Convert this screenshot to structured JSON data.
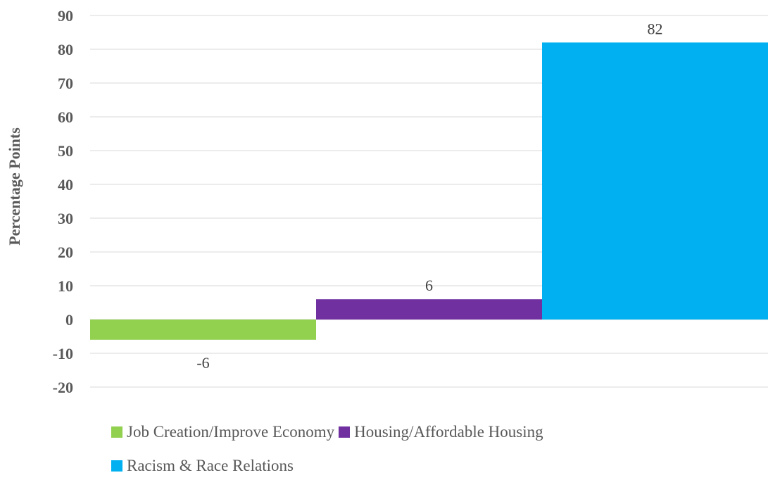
{
  "chart_data": {
    "type": "bar",
    "ylabel": "Percentage Points",
    "xlabel": "",
    "ylim": [
      -20,
      90
    ],
    "yticks": [
      90,
      80,
      70,
      60,
      50,
      40,
      30,
      20,
      10,
      0,
      -10,
      -20
    ],
    "grid": true,
    "legend_position": "bottom",
    "series": [
      {
        "name": "Job Creation/Improve Economy",
        "value": -6,
        "label": "-6",
        "color": "#92d050"
      },
      {
        "name": "Housing/Affordable Housing",
        "value": 6,
        "label": "6",
        "color": "#7030a0"
      },
      {
        "name": "Racism & Race Relations",
        "value": 82,
        "label": "82",
        "color": "#00b0f0"
      }
    ]
  }
}
